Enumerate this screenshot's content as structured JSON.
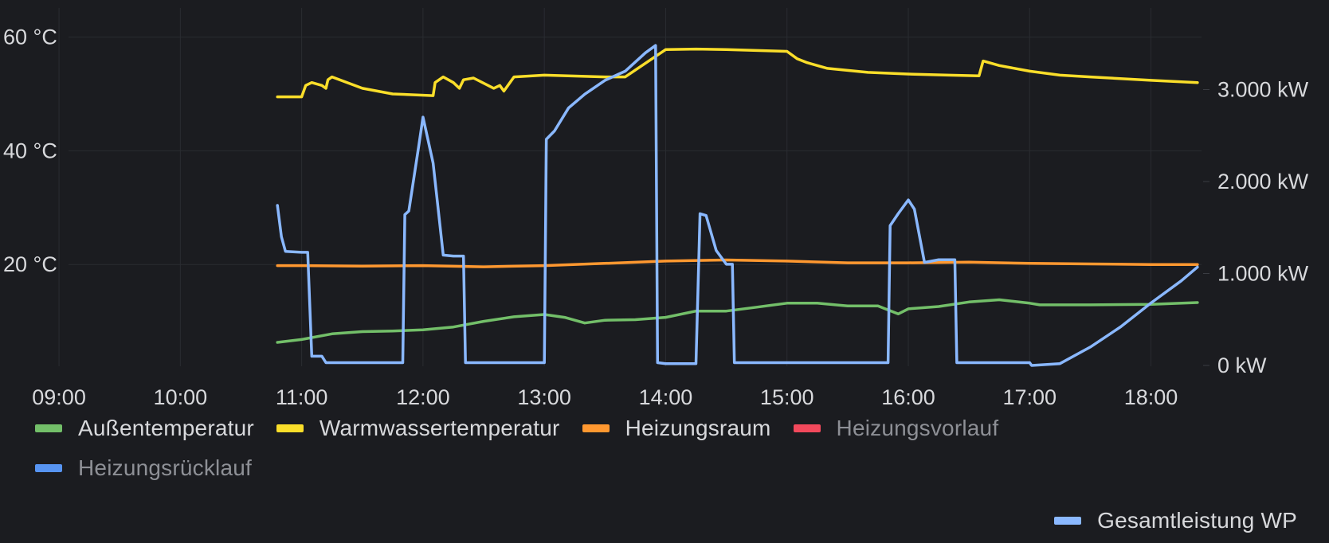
{
  "chart_data": {
    "type": "line",
    "x_range": [
      "08:45",
      "18:25"
    ],
    "x_ticks": [
      "09:00",
      "10:00",
      "11:00",
      "12:00",
      "13:00",
      "14:00",
      "15:00",
      "16:00",
      "17:00",
      "18:00"
    ],
    "y_left": {
      "unit": "°C",
      "ticks": [
        {
          "value": 20,
          "label": "20 °C"
        },
        {
          "value": 40,
          "label": "40 °C"
        },
        {
          "value": 60,
          "label": "60 °C"
        }
      ],
      "ylim": [
        0,
        65
      ]
    },
    "y_right": {
      "unit": "kW",
      "ticks": [
        {
          "value": 0,
          "label": "0 kW"
        },
        {
          "value": 1000,
          "label": "1.000 kW"
        },
        {
          "value": 2000,
          "label": "2.000 kW"
        },
        {
          "value": 3000,
          "label": "3.000 kW"
        }
      ],
      "ylim": [
        0,
        3500
      ]
    },
    "grid": true,
    "legend_position": "bottom",
    "series": [
      {
        "name": "Außentemperatur",
        "color": "#73bf69",
        "axis": "left",
        "visible": true,
        "points": [
          [
            "10:48",
            6.3
          ],
          [
            "11:00",
            6.8
          ],
          [
            "11:15",
            7.8
          ],
          [
            "11:30",
            8.2
          ],
          [
            "11:45",
            8.3
          ],
          [
            "12:00",
            8.5
          ],
          [
            "12:15",
            9.0
          ],
          [
            "12:30",
            10.0
          ],
          [
            "12:45",
            10.8
          ],
          [
            "13:00",
            11.2
          ],
          [
            "13:10",
            10.7
          ],
          [
            "13:20",
            9.7
          ],
          [
            "13:30",
            10.2
          ],
          [
            "13:45",
            10.3
          ],
          [
            "14:00",
            10.7
          ],
          [
            "14:15",
            11.8
          ],
          [
            "14:30",
            11.8
          ],
          [
            "14:45",
            12.5
          ],
          [
            "15:00",
            13.2
          ],
          [
            "15:15",
            13.2
          ],
          [
            "15:30",
            12.7
          ],
          [
            "15:45",
            12.7
          ],
          [
            "15:55",
            11.3
          ],
          [
            "16:00",
            12.2
          ],
          [
            "16:15",
            12.6
          ],
          [
            "16:30",
            13.4
          ],
          [
            "16:45",
            13.8
          ],
          [
            "17:00",
            13.2
          ],
          [
            "17:05",
            12.9
          ],
          [
            "17:30",
            12.9
          ],
          [
            "18:00",
            13.0
          ],
          [
            "18:23",
            13.3
          ]
        ]
      },
      {
        "name": "Warmwassertemperatur",
        "color": "#fade2a",
        "axis": "left",
        "visible": true,
        "points": [
          [
            "10:48",
            49.5
          ],
          [
            "11:00",
            49.5
          ],
          [
            "11:02",
            51.5
          ],
          [
            "11:05",
            52.0
          ],
          [
            "11:10",
            51.5
          ],
          [
            "11:12",
            51.0
          ],
          [
            "11:13",
            52.5
          ],
          [
            "11:15",
            53.0
          ],
          [
            "11:30",
            51.0
          ],
          [
            "11:45",
            50.0
          ],
          [
            "12:05",
            49.7
          ],
          [
            "12:06",
            52.0
          ],
          [
            "12:10",
            53.0
          ],
          [
            "12:15",
            52.0
          ],
          [
            "12:18",
            51.0
          ],
          [
            "12:20",
            52.5
          ],
          [
            "12:25",
            52.8
          ],
          [
            "12:35",
            51.0
          ],
          [
            "12:38",
            51.5
          ],
          [
            "12:40",
            50.5
          ],
          [
            "12:45",
            53.0
          ],
          [
            "13:00",
            53.3
          ],
          [
            "13:30",
            53.0
          ],
          [
            "13:40",
            53.0
          ],
          [
            "14:00",
            57.8
          ],
          [
            "14:15",
            57.9
          ],
          [
            "14:30",
            57.8
          ],
          [
            "15:00",
            57.5
          ],
          [
            "15:05",
            56.2
          ],
          [
            "15:10",
            55.5
          ],
          [
            "15:20",
            54.5
          ],
          [
            "15:40",
            53.8
          ],
          [
            "16:00",
            53.5
          ],
          [
            "16:20",
            53.3
          ],
          [
            "16:35",
            53.2
          ],
          [
            "16:37",
            55.8
          ],
          [
            "16:45",
            55.0
          ],
          [
            "17:00",
            54.0
          ],
          [
            "17:15",
            53.3
          ],
          [
            "17:30",
            53.0
          ],
          [
            "18:00",
            52.4
          ],
          [
            "18:23",
            52.0
          ]
        ]
      },
      {
        "name": "Heizungsraum",
        "color": "#ff9830",
        "axis": "left",
        "visible": true,
        "points": [
          [
            "10:48",
            19.8
          ],
          [
            "11:00",
            19.8
          ],
          [
            "11:30",
            19.7
          ],
          [
            "12:00",
            19.8
          ],
          [
            "12:30",
            19.6
          ],
          [
            "13:00",
            19.8
          ],
          [
            "13:30",
            20.2
          ],
          [
            "14:00",
            20.6
          ],
          [
            "14:30",
            20.8
          ],
          [
            "15:00",
            20.6
          ],
          [
            "15:30",
            20.3
          ],
          [
            "16:00",
            20.3
          ],
          [
            "16:30",
            20.4
          ],
          [
            "17:00",
            20.2
          ],
          [
            "17:30",
            20.1
          ],
          [
            "18:00",
            20.0
          ],
          [
            "18:23",
            20.0
          ]
        ]
      },
      {
        "name": "Heizungsvorlauf",
        "color": "#f2495c",
        "axis": "left",
        "visible": false,
        "points": []
      },
      {
        "name": "Heizungsrücklauf",
        "color": "#5794f2",
        "axis": "left",
        "visible": false,
        "points": []
      },
      {
        "name": "Gesamtleistung WP",
        "color": "#8ab8ff",
        "axis": "right",
        "visible": true,
        "points": [
          [
            "10:48",
            1740
          ],
          [
            "10:50",
            1400
          ],
          [
            "10:52",
            1240
          ],
          [
            "11:00",
            1230
          ],
          [
            "11:03",
            1230
          ],
          [
            "11:05",
            100
          ],
          [
            "11:10",
            100
          ],
          [
            "11:12",
            30
          ],
          [
            "11:30",
            30
          ],
          [
            "11:50",
            30
          ],
          [
            "11:51",
            1640
          ],
          [
            "11:53",
            1680
          ],
          [
            "11:58",
            2400
          ],
          [
            "12:00",
            2700
          ],
          [
            "12:05",
            2200
          ],
          [
            "12:10",
            1200
          ],
          [
            "12:15",
            1190
          ],
          [
            "12:20",
            1190
          ],
          [
            "12:21",
            30
          ],
          [
            "12:30",
            30
          ],
          [
            "13:00",
            30
          ],
          [
            "13:01",
            2460
          ],
          [
            "13:05",
            2550
          ],
          [
            "13:12",
            2800
          ],
          [
            "13:20",
            2950
          ],
          [
            "13:30",
            3100
          ],
          [
            "13:40",
            3200
          ],
          [
            "13:50",
            3400
          ],
          [
            "13:55",
            3480
          ],
          [
            "13:56",
            30
          ],
          [
            "14:00",
            20
          ],
          [
            "14:15",
            20
          ],
          [
            "14:17",
            1650
          ],
          [
            "14:20",
            1630
          ],
          [
            "14:25",
            1250
          ],
          [
            "14:30",
            1100
          ],
          [
            "14:33",
            1100
          ],
          [
            "14:34",
            30
          ],
          [
            "15:00",
            30
          ],
          [
            "15:30",
            30
          ],
          [
            "15:50",
            30
          ],
          [
            "15:51",
            1520
          ],
          [
            "15:55",
            1650
          ],
          [
            "16:00",
            1800
          ],
          [
            "16:03",
            1700
          ],
          [
            "16:08",
            1120
          ],
          [
            "16:15",
            1150
          ],
          [
            "16:23",
            1150
          ],
          [
            "16:24",
            30
          ],
          [
            "16:45",
            30
          ],
          [
            "17:00",
            30
          ],
          [
            "17:01",
            0
          ],
          [
            "17:15",
            20
          ],
          [
            "17:30",
            200
          ],
          [
            "17:45",
            420
          ],
          [
            "18:00",
            680
          ],
          [
            "18:15",
            920
          ],
          [
            "18:23",
            1070
          ]
        ]
      }
    ]
  },
  "legend": {
    "row_items": [
      {
        "label": "Außentemperatur",
        "color": "#73bf69",
        "active": true
      },
      {
        "label": "Warmwassertemperatur",
        "color": "#fade2a",
        "active": true
      },
      {
        "label": "Heizungsraum",
        "color": "#ff9830",
        "active": true
      },
      {
        "label": "Heizungsvorlauf",
        "color": "#f2495c",
        "active": false
      },
      {
        "label": "Heizungsrücklauf",
        "color": "#5794f2",
        "active": false
      }
    ],
    "right_item": {
      "label": "Gesamtleistung WP",
      "color": "#8ab8ff",
      "active": true
    }
  }
}
